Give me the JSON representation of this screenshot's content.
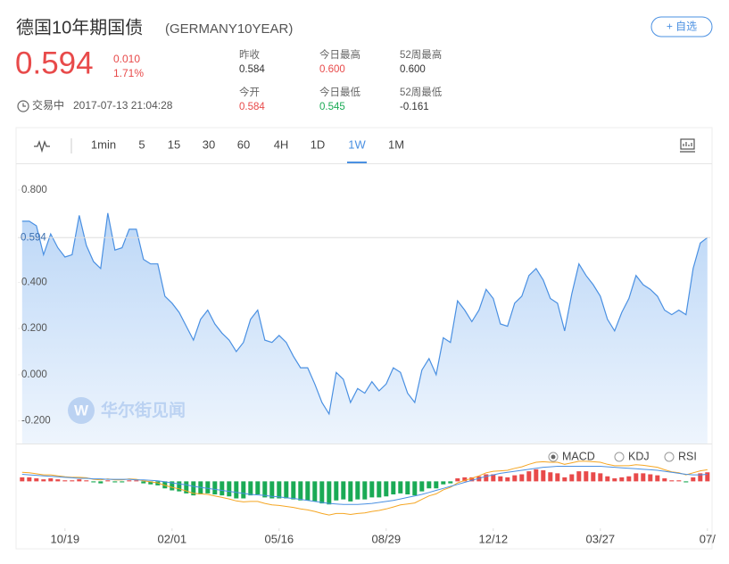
{
  "header": {
    "title": "德国10年期国债",
    "code": "(GERMANY10YEAR)",
    "watch_button": "+ 自选",
    "price": "0.594",
    "change": "0.010",
    "change_pct": "1.71%",
    "status": "交易中",
    "datetime": "2017-07-13 21:04:28",
    "price_color": "#e84a4a"
  },
  "stats": [
    {
      "label": "昨收",
      "value": "0.584",
      "color": "#333333"
    },
    {
      "label": "今开",
      "value": "0.584",
      "color": "#e84a4a"
    },
    {
      "label": "今日最高",
      "value": "0.600",
      "color": "#e84a4a"
    },
    {
      "label": "今日最低",
      "value": "0.545",
      "color": "#1aaa55"
    },
    {
      "label": "52周最高",
      "value": "0.600",
      "color": "#333333"
    },
    {
      "label": "52周最低",
      "value": "-0.161",
      "color": "#333333"
    }
  ],
  "toolbar": {
    "periods": [
      "1min",
      "5",
      "15",
      "30",
      "60",
      "4H",
      "1D",
      "1W",
      "1M"
    ],
    "active": 7
  },
  "indicators": {
    "items": [
      "MACD",
      "KDJ",
      "RSI"
    ],
    "active": 0
  },
  "watermark": {
    "logo": "W",
    "text": "华尔街见闻"
  },
  "chart_data": [
    {
      "type": "area",
      "color": "#4a90e2",
      "values": [
        0.665,
        0.665,
        0.645,
        0.52,
        0.61,
        0.55,
        0.51,
        0.52,
        0.69,
        0.56,
        0.49,
        0.46,
        0.7,
        0.54,
        0.55,
        0.63,
        0.63,
        0.5,
        0.48,
        0.48,
        0.34,
        0.31,
        0.27,
        0.21,
        0.15,
        0.24,
        0.28,
        0.22,
        0.18,
        0.15,
        0.1,
        0.14,
        0.24,
        0.28,
        0.15,
        0.14,
        0.17,
        0.14,
        0.08,
        0.03,
        0.03,
        -0.04,
        -0.12,
        -0.17,
        0.01,
        -0.02,
        -0.12,
        -0.06,
        -0.08,
        -0.03,
        -0.07,
        -0.04,
        0.03,
        0.01,
        -0.08,
        -0.12,
        0.02,
        0.07,
        0.0,
        0.16,
        0.14,
        0.32,
        0.28,
        0.23,
        0.28,
        0.37,
        0.33,
        0.22,
        0.21,
        0.31,
        0.34,
        0.43,
        0.46,
        0.41,
        0.33,
        0.31,
        0.19,
        0.35,
        0.48,
        0.43,
        0.39,
        0.34,
        0.24,
        0.19,
        0.27,
        0.33,
        0.43,
        0.39,
        0.37,
        0.34,
        0.28,
        0.26,
        0.28,
        0.26,
        0.46,
        0.57,
        0.594
      ],
      "xlim": [
        -0.6,
        96.4
      ],
      "xticks": [
        {
          "value": 6,
          "label": "10/19"
        },
        {
          "value": 21,
          "label": "02/01"
        },
        {
          "value": 36,
          "label": "05/16"
        },
        {
          "value": 51,
          "label": "08/29"
        },
        {
          "value": 66,
          "label": "12/12"
        },
        {
          "value": 81,
          "label": "03/27"
        },
        {
          "value": 96,
          "label": "07/"
        }
      ],
      "ylim": [
        -0.298,
        0.908
      ],
      "yticks": [
        {
          "value": 0.8,
          "label": "0.800"
        },
        {
          "value": 0.4,
          "label": "0.400"
        },
        {
          "value": 0.2,
          "label": "0.200"
        },
        {
          "value": 0,
          "label": "0.000"
        },
        {
          "value": -0.2,
          "label": "-0.200"
        }
      ]
    },
    {
      "type": "macd",
      "xlim": [
        -0.6,
        96.4
      ],
      "ylim": [
        -0.09,
        0.07
      ],
      "series": [
        {
          "color": "#e84a4a",
          "negative_color": "#1aaa55",
          "values": [
            0.008,
            0.008,
            0.006,
            0.004,
            0.006,
            0.004,
            0.002,
            0.002,
            0.004,
            0.002,
            -0.002,
            -0.004,
            0.002,
            -0.002,
            -0.002,
            0.002,
            0.002,
            -0.004,
            -0.006,
            -0.008,
            -0.014,
            -0.018,
            -0.02,
            -0.024,
            -0.028,
            -0.026,
            -0.024,
            -0.026,
            -0.028,
            -0.03,
            -0.034,
            -0.034,
            -0.028,
            -0.026,
            -0.032,
            -0.034,
            -0.034,
            -0.034,
            -0.036,
            -0.038,
            -0.038,
            -0.04,
            -0.044,
            -0.046,
            -0.038,
            -0.036,
            -0.04,
            -0.036,
            -0.036,
            -0.032,
            -0.032,
            -0.03,
            -0.026,
            -0.024,
            -0.026,
            -0.028,
            -0.02,
            -0.014,
            -0.014,
            -0.006,
            -0.004,
            0.006,
            0.008,
            0.008,
            0.01,
            0.014,
            0.014,
            0.01,
            0.008,
            0.012,
            0.014,
            0.02,
            0.024,
            0.022,
            0.018,
            0.016,
            0.008,
            0.014,
            0.02,
            0.02,
            0.018,
            0.016,
            0.01,
            0.006,
            0.008,
            0.01,
            0.016,
            0.016,
            0.014,
            0.012,
            0.006,
            0.002,
            0.002,
            -0.002,
            0.008,
            0.016,
            0.018
          ]
        },
        {
          "color": "#f5a623",
          "values": [
            0.018,
            0.017,
            0.015,
            0.013,
            0.013,
            0.011,
            0.009,
            0.008,
            0.008,
            0.007,
            0.004,
            0.003,
            0.005,
            0.003,
            0.003,
            0.005,
            0.004,
            0.001,
            -0.001,
            -0.003,
            -0.008,
            -0.012,
            -0.015,
            -0.019,
            -0.024,
            -0.025,
            -0.026,
            -0.029,
            -0.032,
            -0.035,
            -0.039,
            -0.041,
            -0.04,
            -0.04,
            -0.044,
            -0.047,
            -0.048,
            -0.05,
            -0.052,
            -0.055,
            -0.057,
            -0.06,
            -0.064,
            -0.067,
            -0.064,
            -0.064,
            -0.066,
            -0.064,
            -0.063,
            -0.06,
            -0.058,
            -0.055,
            -0.051,
            -0.047,
            -0.045,
            -0.043,
            -0.036,
            -0.029,
            -0.025,
            -0.017,
            -0.012,
            -0.003,
            0.002,
            0.006,
            0.011,
            0.017,
            0.02,
            0.021,
            0.022,
            0.026,
            0.029,
            0.034,
            0.038,
            0.039,
            0.038,
            0.038,
            0.034,
            0.037,
            0.04,
            0.04,
            0.039,
            0.038,
            0.034,
            0.031,
            0.031,
            0.031,
            0.033,
            0.032,
            0.03,
            0.028,
            0.023,
            0.019,
            0.017,
            0.013,
            0.017,
            0.021,
            0.023
          ]
        },
        {
          "color": "#4a90e2",
          "values": [
            0.014,
            0.013,
            0.012,
            0.011,
            0.01,
            0.009,
            0.008,
            0.007,
            0.006,
            0.006,
            0.005,
            0.005,
            0.004,
            0.004,
            0.004,
            0.004,
            0.003,
            0.003,
            0.002,
            0.001,
            -0.001,
            -0.003,
            -0.005,
            -0.007,
            -0.01,
            -0.012,
            -0.014,
            -0.016,
            -0.018,
            -0.02,
            -0.022,
            -0.024,
            -0.026,
            -0.027,
            -0.028,
            -0.03,
            -0.031,
            -0.033,
            -0.034,
            -0.036,
            -0.038,
            -0.04,
            -0.042,
            -0.044,
            -0.045,
            -0.046,
            -0.046,
            -0.046,
            -0.045,
            -0.044,
            -0.042,
            -0.04,
            -0.038,
            -0.035,
            -0.032,
            -0.029,
            -0.026,
            -0.022,
            -0.018,
            -0.014,
            -0.01,
            -0.006,
            -0.002,
            0.002,
            0.006,
            0.01,
            0.013,
            0.016,
            0.018,
            0.02,
            0.022,
            0.024,
            0.026,
            0.028,
            0.029,
            0.03,
            0.03,
            0.03,
            0.03,
            0.03,
            0.03,
            0.03,
            0.029,
            0.028,
            0.027,
            0.026,
            0.025,
            0.024,
            0.023,
            0.022,
            0.02,
            0.018,
            0.016,
            0.014,
            0.013,
            0.013,
            0.014
          ]
        }
      ]
    }
  ]
}
